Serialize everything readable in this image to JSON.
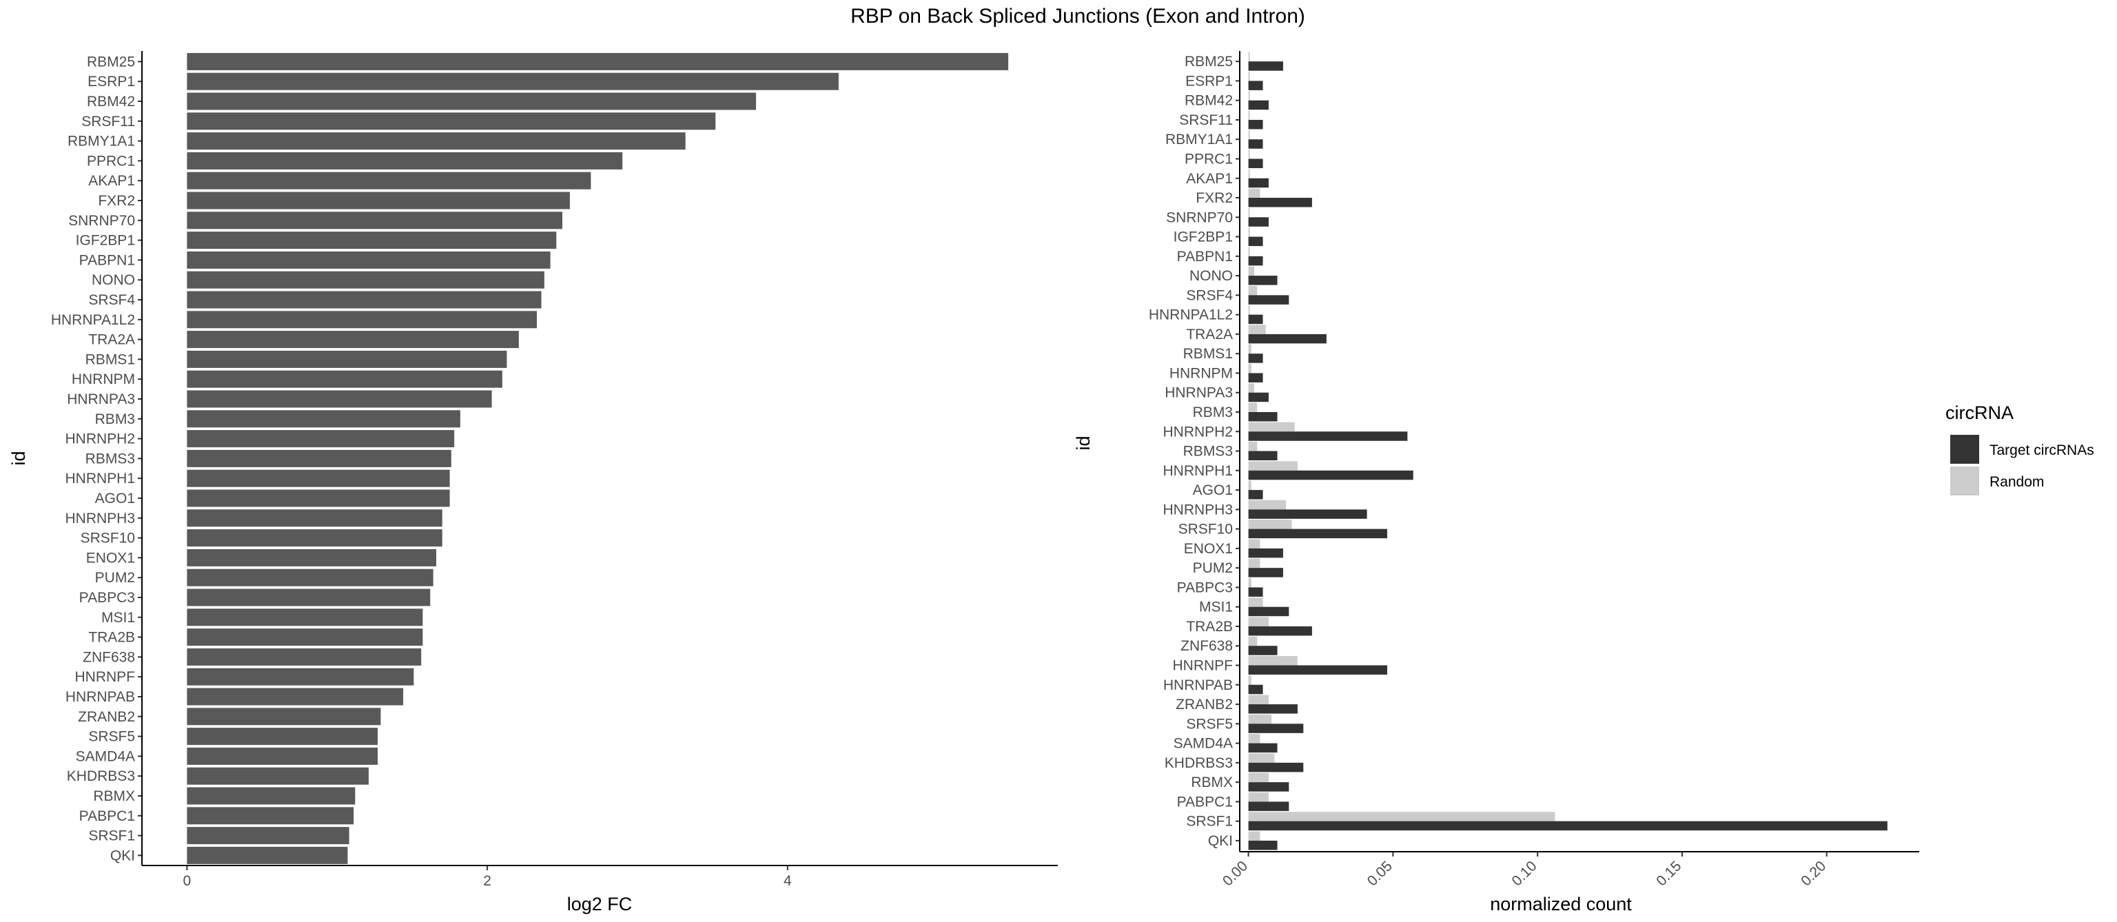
{
  "title": "RBP on Back Spliced Junctions (Exon and Intron)",
  "chart_data": [
    {
      "type": "bar",
      "orientation": "horizontal",
      "xlabel": "log2 FC",
      "ylabel": "id",
      "xlim": [
        -0.3,
        5.8
      ],
      "xticks": [
        0,
        2,
        4
      ],
      "bar_color": "#595959",
      "categories": [
        "RBM25",
        "ESRP1",
        "RBM42",
        "SRSF11",
        "RBMY1A1",
        "PPRC1",
        "AKAP1",
        "FXR2",
        "SNRNP70",
        "IGF2BP1",
        "PABPN1",
        "NONO",
        "SRSF4",
        "HNRNPA1L2",
        "TRA2A",
        "RBMS1",
        "HNRNPM",
        "HNRNPA3",
        "RBM3",
        "HNRNPH2",
        "RBMS3",
        "HNRNPH1",
        "AGO1",
        "HNRNPH3",
        "SRSF10",
        "ENOX1",
        "PUM2",
        "PABPC3",
        "MSI1",
        "TRA2B",
        "ZNF638",
        "HNRNPF",
        "HNRNPAB",
        "ZRANB2",
        "SRSF5",
        "SAMD4A",
        "KHDRBS3",
        "RBMX",
        "PABPC1",
        "SRSF1",
        "QKI"
      ],
      "values": [
        5.47,
        4.34,
        3.79,
        3.52,
        3.32,
        2.9,
        2.69,
        2.55,
        2.5,
        2.46,
        2.42,
        2.38,
        2.36,
        2.33,
        2.21,
        2.13,
        2.1,
        2.03,
        1.82,
        1.78,
        1.76,
        1.75,
        1.75,
        1.7,
        1.7,
        1.66,
        1.64,
        1.62,
        1.57,
        1.57,
        1.56,
        1.51,
        1.44,
        1.29,
        1.27,
        1.27,
        1.21,
        1.12,
        1.11,
        1.08,
        1.07
      ]
    },
    {
      "type": "bar",
      "orientation": "horizontal",
      "xlabel": "normalized count",
      "ylabel": "id",
      "xlim": [
        -0.003,
        0.232
      ],
      "xticks": [
        0.0,
        0.05,
        0.1,
        0.15,
        0.2
      ],
      "xtick_labels": [
        "0.00",
        "0.05",
        "0.10",
        "0.15",
        "0.20"
      ],
      "categories": [
        "RBM25",
        "ESRP1",
        "RBM42",
        "SRSF11",
        "RBMY1A1",
        "PPRC1",
        "AKAP1",
        "FXR2",
        "SNRNP70",
        "IGF2BP1",
        "PABPN1",
        "NONO",
        "SRSF4",
        "HNRNPA1L2",
        "TRA2A",
        "RBMS1",
        "HNRNPM",
        "HNRNPA3",
        "RBM3",
        "HNRNPH2",
        "RBMS3",
        "HNRNPH1",
        "AGO1",
        "HNRNPH3",
        "SRSF10",
        "ENOX1",
        "PUM2",
        "PABPC3",
        "MSI1",
        "TRA2B",
        "ZNF638",
        "HNRNPF",
        "HNRNPAB",
        "ZRANB2",
        "SRSF5",
        "SAMD4A",
        "KHDRBS3",
        "RBMX",
        "PABPC1",
        "SRSF1",
        "QKI"
      ],
      "series": [
        {
          "name": "Target circRNAs",
          "color": "#333333",
          "values": [
            0.012,
            0.005,
            0.007,
            0.005,
            0.005,
            0.005,
            0.007,
            0.022,
            0.007,
            0.005,
            0.005,
            0.01,
            0.014,
            0.005,
            0.027,
            0.005,
            0.005,
            0.007,
            0.01,
            0.055,
            0.01,
            0.057,
            0.005,
            0.041,
            0.048,
            0.012,
            0.012,
            0.005,
            0.014,
            0.022,
            0.01,
            0.048,
            0.005,
            0.017,
            0.019,
            0.01,
            0.019,
            0.014,
            0.014,
            0.221,
            0.01
          ]
        },
        {
          "name": "Random",
          "color": "#cccccc",
          "values": [
            0.0005,
            0.0005,
            0.0005,
            0.0005,
            0.0005,
            0.0005,
            0.0005,
            0.004,
            0.0005,
            0.0005,
            0.0005,
            0.002,
            0.003,
            0.0005,
            0.006,
            0.001,
            0.001,
            0.002,
            0.003,
            0.016,
            0.003,
            0.017,
            0.001,
            0.013,
            0.015,
            0.004,
            0.004,
            0.001,
            0.005,
            0.007,
            0.003,
            0.017,
            0.001,
            0.007,
            0.008,
            0.004,
            0.009,
            0.007,
            0.007,
            0.106,
            0.004
          ]
        }
      ],
      "legend": {
        "title": "circRNA",
        "position": "right"
      }
    }
  ]
}
